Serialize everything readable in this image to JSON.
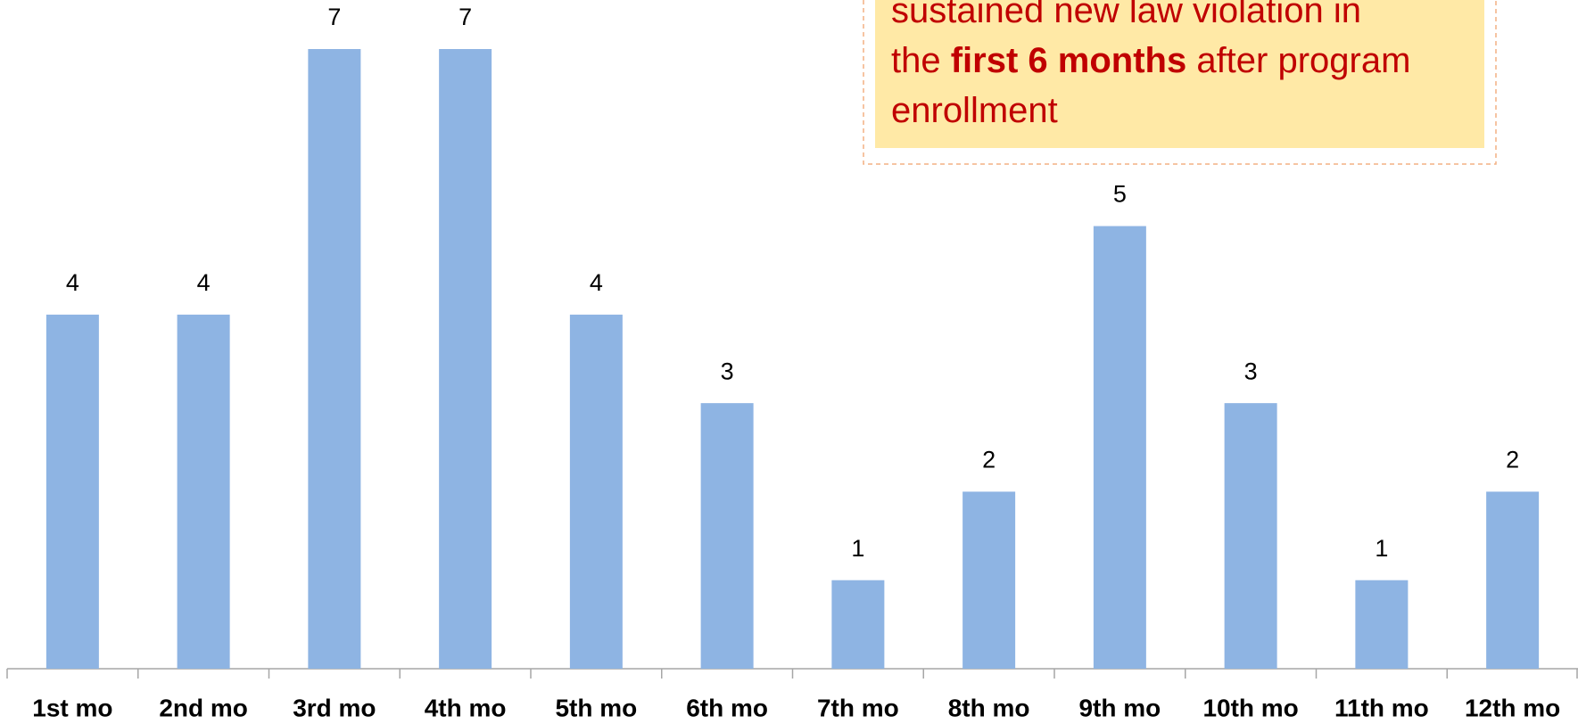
{
  "chart_data": {
    "type": "bar",
    "categories": [
      "1st mo",
      "2nd mo",
      "3rd mo",
      "4th mo",
      "5th mo",
      "6th mo",
      "7th mo",
      "8th mo",
      "9th mo",
      "10th mo",
      "11th mo",
      "12th mo"
    ],
    "values": [
      4,
      4,
      7,
      7,
      4,
      3,
      1,
      2,
      5,
      3,
      1,
      2
    ],
    "color": "#8eb4e3",
    "ylim": [
      0,
      7
    ],
    "annotation": [
      [
        {
          "text": "sustained new law violation in",
          "bold": false
        }
      ],
      [
        {
          "text": "the ",
          "bold": false
        },
        {
          "text": "first 6 months",
          "bold": true
        },
        {
          "text": " after program",
          "bold": false
        }
      ],
      [
        {
          "text": "enrollment",
          "bold": false
        }
      ]
    ]
  }
}
